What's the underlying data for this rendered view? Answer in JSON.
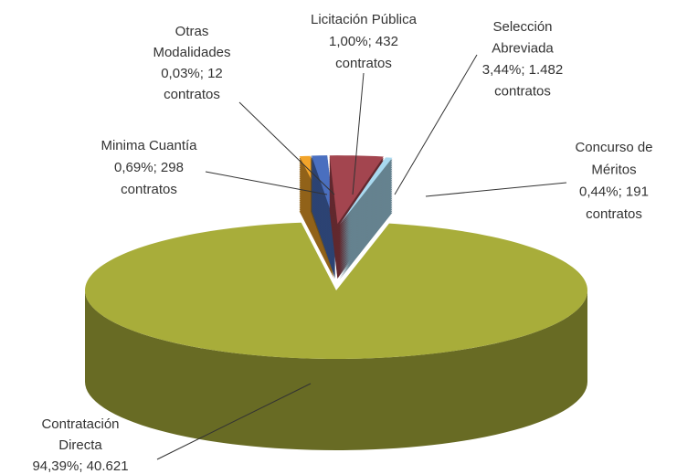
{
  "chart_data": {
    "type": "pie",
    "categories": [
      "Minima Cuantía",
      "Otras Modalidades",
      "Licitación Pública",
      "Selección Abreviada",
      "Concurso de Méritos",
      "Contratación Directa"
    ],
    "values": [
      0.69,
      0.03,
      1.0,
      3.44,
      0.44,
      94.39
    ],
    "labels": [
      [
        "Minima Cuantía",
        "0,69%; 298",
        "contratos"
      ],
      [
        "Otras",
        "Modalidades",
        "0,03%; 12",
        "contratos"
      ],
      [
        "Licitación Pública",
        "1,00%; 432",
        "contratos"
      ],
      [
        "Selección",
        "Abreviada",
        "3,44%; 1.482",
        "contratos"
      ],
      [
        "Concurso de",
        "Méritos",
        "0,44%; 191",
        "contratos"
      ],
      [
        "Contratación",
        "Directa",
        "94,39%; 40.621"
      ]
    ],
    "colors": [
      "#f2a42a",
      "#8b6a2c",
      "#4a6fbf",
      "#a3454f",
      "#a9d9ef",
      "#a8ad3a"
    ]
  }
}
